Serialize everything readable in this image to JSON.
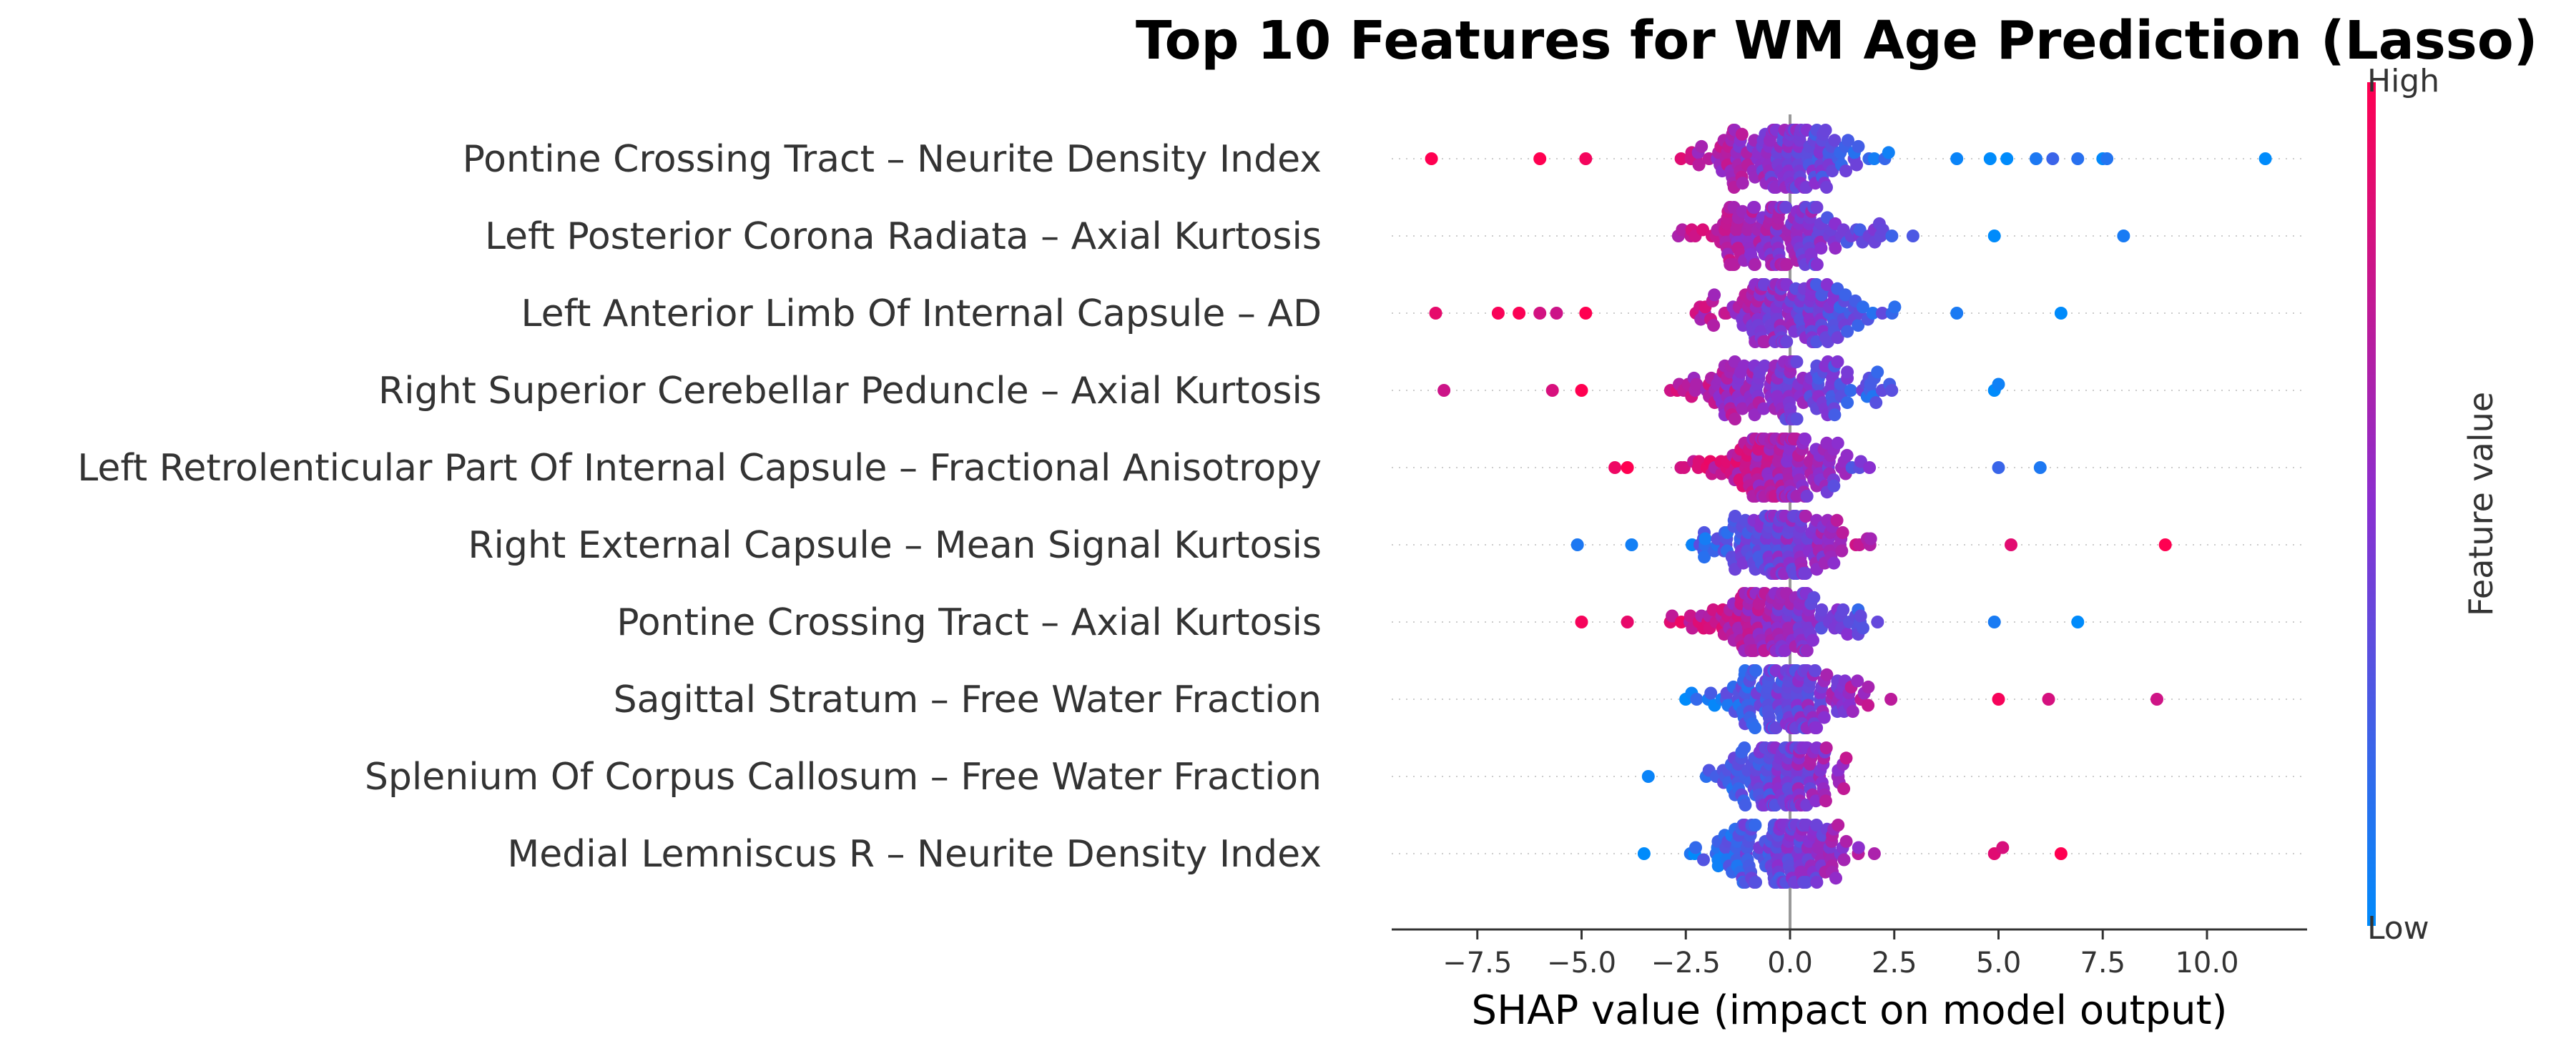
{
  "chart_data": {
    "type": "scatter",
    "subtype": "shap-beeswarm",
    "title": "Top 10 Features for WM Age Prediction (Lasso)",
    "xlabel": "SHAP value (impact on model output)",
    "xlim": [
      -9.8,
      12.2
    ],
    "xticks": [
      -7.5,
      -5.0,
      -2.5,
      0.0,
      2.5,
      5.0,
      7.5,
      10.0
    ],
    "xtick_labels": [
      "−7.5",
      "−5.0",
      "−2.5",
      "0.0",
      "2.5",
      "5.0",
      "7.5",
      "10.0"
    ],
    "colorbar": {
      "title": "Feature value",
      "high_label": "High",
      "low_label": "Low",
      "low_color": "#008bfb",
      "high_color": "#ff0051"
    },
    "features": [
      {
        "name": "Pontine Crossing Tract – Neurite Density Index",
        "direction": -1,
        "core_min": -4.2,
        "core_max": 3.3,
        "n": 150,
        "outliers": [
          -8.6,
          -6.0,
          -4.9,
          4.0,
          4.8,
          5.2,
          5.9,
          6.3,
          6.9,
          7.5,
          7.6,
          11.4
        ]
      },
      {
        "name": "Left Posterior Corona Radiata – Axial Kurtosis",
        "direction": -1,
        "core_min": -4.0,
        "core_max": 4.4,
        "n": 150,
        "outliers": [
          4.9,
          8.0
        ]
      },
      {
        "name": "Left Anterior Limb Of Internal Capsule – AD",
        "direction": -1,
        "core_min": -4.2,
        "core_max": 3.6,
        "n": 150,
        "outliers": [
          -8.5,
          -7.0,
          -6.5,
          -6.0,
          -5.6,
          -4.9,
          4.0,
          6.5
        ]
      },
      {
        "name": "Right Superior Cerebellar Peduncle – Axial Kurtosis",
        "direction": -1,
        "core_min": -4.4,
        "core_max": 3.8,
        "n": 150,
        "outliers": [
          -8.3,
          -5.7,
          -5.0,
          4.9,
          5.0
        ]
      },
      {
        "name": "Left Retrolenticular Part Of Internal Capsule – Fractional Anisotropy",
        "direction": -1,
        "core_min": -2.8,
        "core_max": 4.5,
        "n": 150,
        "outliers": [
          -4.2,
          -3.9,
          5.0,
          6.0
        ]
      },
      {
        "name": "Right External Capsule – Mean Signal Kurtosis",
        "direction": 1,
        "core_min": -3.2,
        "core_max": 3.9,
        "n": 150,
        "outliers": [
          -5.1,
          -3.8,
          5.3,
          9.0
        ]
      },
      {
        "name": "Pontine Crossing Tract – Axial Kurtosis",
        "direction": -1,
        "core_min": -3.4,
        "core_max": 3.8,
        "n": 150,
        "outliers": [
          -5.0,
          -3.9,
          4.9,
          6.9
        ]
      },
      {
        "name": "Sagittal Stratum – Free Water Fraction",
        "direction": 1,
        "core_min": -2.6,
        "core_max": 4.4,
        "n": 150,
        "outliers": [
          5.0,
          6.2,
          8.8
        ]
      },
      {
        "name": "Splenium Of Corpus Callosum – Free Water Fraction",
        "direction": 1,
        "core_min": -2.6,
        "core_max": 3.3,
        "n": 150,
        "outliers": [
          -3.4
        ]
      },
      {
        "name": "Medial Lemniscus R – Neurite Density Index",
        "direction": 1,
        "core_min": -2.7,
        "core_max": 4.2,
        "n": 150,
        "outliers": [
          -3.5,
          4.9,
          5.1,
          6.5
        ]
      }
    ]
  }
}
